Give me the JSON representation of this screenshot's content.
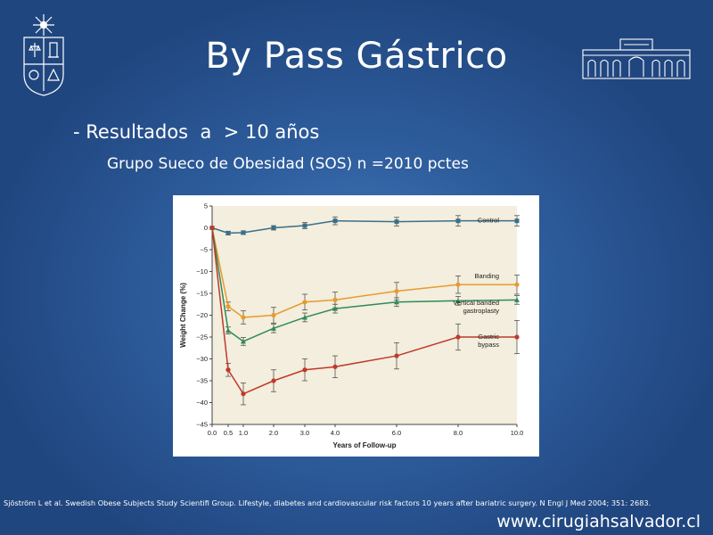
{
  "slide": {
    "title": "By Pass Gástrico",
    "subtitle": "- Resultados  a  > 10 años",
    "subsubtitle": "Grupo Sueco de Obesidad (SOS) n =2010 pctes",
    "citation": "Sjöström L et al. Swedish Obese Subjects Study Scientifi Group. Lifestyle, diabetes and cardiovascular risk factors 10 years after bariatric surgery. N Engl J Med 2004; 351: 2683.",
    "website": "www.cirugiahsalvador.cl",
    "logos": {
      "left": "university-crest",
      "right": "building-emblem"
    }
  },
  "chart_data": {
    "type": "line",
    "title": "",
    "xlabel": "Years of Follow-up",
    "ylabel": "Weight Change (%)",
    "xlim": [
      0,
      10
    ],
    "ylim": [
      -45,
      5
    ],
    "x_ticks": [
      "0.0",
      "0.5",
      "1.0",
      "2.0",
      "3.0",
      "4.0",
      "6.0",
      "8.0",
      "10.0"
    ],
    "y_ticks": [
      "5",
      "0",
      "−5",
      "−10",
      "−15",
      "−20",
      "−25",
      "−30",
      "−35",
      "−40",
      "−45"
    ],
    "x": [
      0,
      0.5,
      1,
      2,
      3,
      4,
      6,
      8,
      10
    ],
    "series": [
      {
        "name": "Control",
        "color": "#3a6f8a",
        "marker": "square",
        "values": [
          0,
          -1.2,
          -1.1,
          0,
          0.5,
          1.6,
          1.4,
          1.6,
          1.6
        ],
        "errors": [
          0,
          0.4,
          0.4,
          0.5,
          0.7,
          0.9,
          1.0,
          1.2,
          1.2
        ]
      },
      {
        "name": "Banding",
        "color": "#e89a2f",
        "marker": "circle",
        "values": [
          0,
          -18,
          -20.5,
          -20,
          -17,
          -16.5,
          -14.5,
          -13,
          -13
        ],
        "errors": [
          0,
          1.0,
          1.5,
          1.8,
          1.8,
          1.8,
          2.0,
          2.0,
          2.2
        ]
      },
      {
        "name": "Vertical banded gastroplasty",
        "label_lines": [
          "Vertical banded",
          "gastroplasty"
        ],
        "color": "#2f8a5a",
        "marker": "triangle",
        "values": [
          0,
          -23.5,
          -26,
          -23,
          -20.5,
          -18.5,
          -17,
          -16.7,
          -16.5
        ],
        "errors": [
          0,
          0.8,
          0.9,
          1.0,
          1.0,
          1.0,
          1.0,
          1.0,
          1.0
        ]
      },
      {
        "name": "Gastric bypass",
        "label_lines": [
          "Gastric",
          "bypass"
        ],
        "color": "#c0392b",
        "marker": "circle",
        "values": [
          0,
          -32.5,
          -38,
          -35,
          -32.5,
          -31.8,
          -29.3,
          -25,
          -25
        ],
        "errors": [
          0,
          1.5,
          2.5,
          2.5,
          2.5,
          2.5,
          3.0,
          3.0,
          3.8
        ]
      }
    ]
  }
}
